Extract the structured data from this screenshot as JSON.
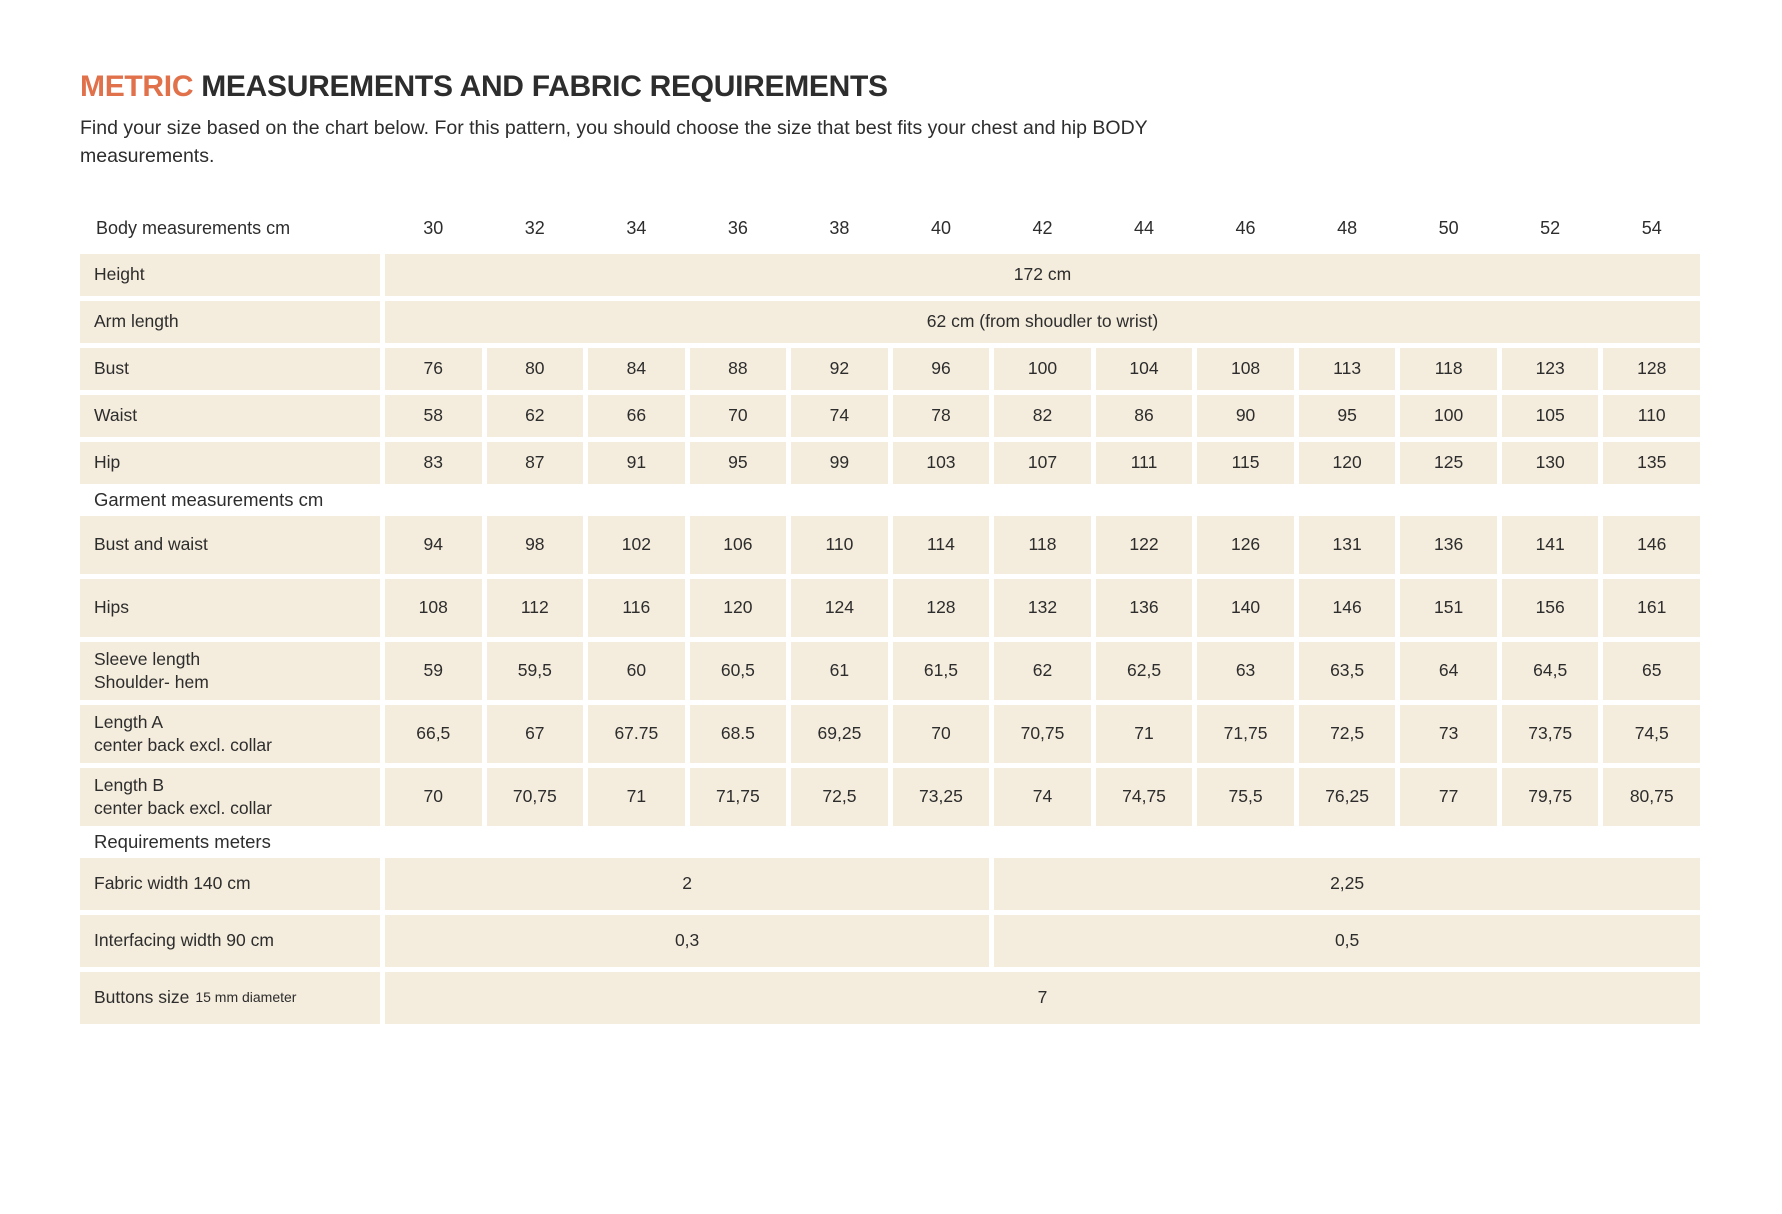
{
  "page": {
    "title_accent": "METRIC",
    "title_rest": " MEASUREMENTS AND FABRIC REQUIREMENTS",
    "subtitle_line1": "Find your size based on the chart below. For this pattern, you should choose the size that best fits your chest and hip BODY",
    "subtitle_line2": "measurements."
  },
  "colors": {
    "accent": "#e0714b",
    "row_bg": "#f4ecdc",
    "text": "#2d2d2d"
  },
  "table": {
    "header_label": "Body measurements cm",
    "sizes": [
      "30",
      "32",
      "34",
      "36",
      "38",
      "40",
      "42",
      "44",
      "46",
      "48",
      "50",
      "52",
      "54"
    ],
    "body_rows": [
      {
        "label": "Height",
        "span_value": "172 cm"
      },
      {
        "label": "Arm length",
        "span_value": "62 cm (from shoudler to wrist)"
      },
      {
        "label": "Bust",
        "values": [
          "76",
          "80",
          "84",
          "88",
          "92",
          "96",
          "100",
          "104",
          "108",
          "113",
          "118",
          "123",
          "128"
        ]
      },
      {
        "label": "Waist",
        "values": [
          "58",
          "62",
          "66",
          "70",
          "74",
          "78",
          "82",
          "86",
          "90",
          "95",
          "100",
          "105",
          "110"
        ]
      },
      {
        "label": "Hip",
        "values": [
          "83",
          "87",
          "91",
          "95",
          "99",
          "103",
          "107",
          "111",
          "115",
          "120",
          "125",
          "130",
          "135"
        ]
      }
    ],
    "garment_section_label": "Garment measurements cm",
    "garment_rows": [
      {
        "label": "Bust and waist",
        "values": [
          "94",
          "98",
          "102",
          "106",
          "110",
          "114",
          "118",
          "122",
          "126",
          "131",
          "136",
          "141",
          "146"
        ]
      },
      {
        "label": "Hips",
        "values": [
          "108",
          "112",
          "116",
          "120",
          "124",
          "128",
          "132",
          "136",
          "140",
          "146",
          "151",
          "156",
          "161"
        ]
      },
      {
        "label": "Sleeve length",
        "sublabel": "Shoulder- hem",
        "values": [
          "59",
          "59,5",
          "60",
          "60,5",
          "61",
          "61,5",
          "62",
          "62,5",
          "63",
          "63,5",
          "64",
          "64,5",
          "65"
        ]
      },
      {
        "label": "Length A",
        "sublabel": "center back excl. collar",
        "values": [
          "66,5",
          "67",
          "67.75",
          "68.5",
          "69,25",
          "70",
          "70,75",
          "71",
          "71,75",
          "72,5",
          "73",
          "73,75",
          "74,5"
        ]
      },
      {
        "label": "Length B",
        "sublabel": "center back excl. collar",
        "values": [
          "70",
          "70,75",
          "71",
          "71,75",
          "72,5",
          "73,25",
          "74",
          "74,75",
          "75,5",
          "76,25",
          "77",
          "79,75",
          "80,75"
        ]
      }
    ],
    "requirements_section_label": "Requirements meters",
    "requirement_rows": [
      {
        "label": "Fabric width 140 cm",
        "left_value": "2",
        "right_value": "2,25"
      },
      {
        "label": "Interfacing width 90 cm",
        "left_value": "0,3",
        "right_value": "0,5"
      },
      {
        "label": "Buttons size",
        "label_small": "15 mm diameter",
        "span_value": "7"
      }
    ]
  }
}
